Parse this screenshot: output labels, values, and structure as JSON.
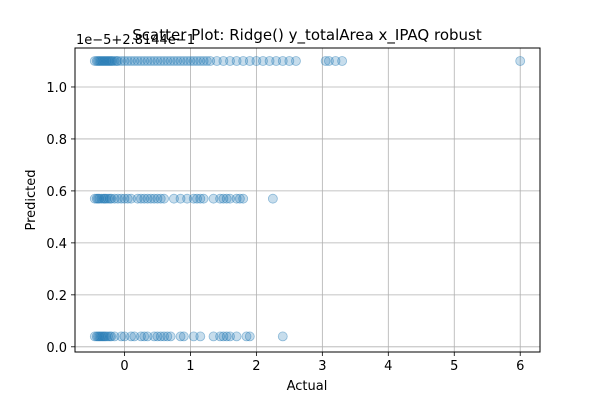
{
  "chart_data": {
    "type": "scatter",
    "title": "Scatter Plot: Ridge() y_totalArea x_IPAQ robust",
    "xlabel": "Actual",
    "ylabel": "Predicted",
    "y_offset_text": "1e−5+2.8144e−1",
    "xlim": [
      -0.75,
      6.3
    ],
    "ylim": [
      -0.02,
      1.15
    ],
    "xticks": [
      0,
      1,
      2,
      3,
      4,
      5,
      6
    ],
    "xtick_labels": [
      "0",
      "1",
      "2",
      "3",
      "4",
      "5",
      "6"
    ],
    "yticks": [
      0.0,
      0.2,
      0.4,
      0.6,
      0.8,
      1.0
    ],
    "ytick_labels": [
      "0.0",
      "0.2",
      "0.4",
      "0.6",
      "0.8",
      "1.0"
    ],
    "grid": true,
    "marker_color": "#1f77b4",
    "marker_alpha": 0.25,
    "series": [
      {
        "x": [
          -0.45,
          -0.42,
          -0.4,
          -0.38,
          -0.36,
          -0.34,
          -0.32,
          -0.3,
          -0.28,
          -0.26,
          -0.24,
          -0.22,
          -0.2,
          -0.18,
          -0.15,
          -0.12,
          -0.1,
          -0.05,
          0.0,
          0.05,
          0.1,
          0.15,
          0.2,
          0.25,
          0.3,
          0.35,
          0.4,
          0.45,
          0.5,
          0.55,
          0.6,
          0.65,
          0.7,
          0.75,
          0.8,
          0.85,
          0.9,
          0.95,
          1.0,
          1.05,
          1.1,
          1.15,
          1.2,
          1.25,
          1.3,
          1.4,
          1.5,
          1.6,
          1.7,
          1.8,
          1.9,
          2.0,
          2.1,
          2.2,
          2.3,
          2.4,
          2.5,
          2.6,
          3.05,
          3.1,
          3.2,
          3.3,
          6.0
        ],
        "y": [
          1.1,
          1.1,
          1.1,
          1.1,
          1.1,
          1.1,
          1.1,
          1.1,
          1.1,
          1.1,
          1.1,
          1.1,
          1.1,
          1.1,
          1.1,
          1.1,
          1.1,
          1.1,
          1.1,
          1.1,
          1.1,
          1.1,
          1.1,
          1.1,
          1.1,
          1.1,
          1.1,
          1.1,
          1.1,
          1.1,
          1.1,
          1.1,
          1.1,
          1.1,
          1.1,
          1.1,
          1.1,
          1.1,
          1.1,
          1.1,
          1.1,
          1.1,
          1.1,
          1.1,
          1.1,
          1.1,
          1.1,
          1.1,
          1.1,
          1.1,
          1.1,
          1.1,
          1.1,
          1.1,
          1.1,
          1.1,
          1.1,
          1.1,
          1.1,
          1.1,
          1.1,
          1.1,
          1.1
        ]
      },
      {
        "x": [
          -0.45,
          -0.42,
          -0.4,
          -0.38,
          -0.35,
          -0.32,
          -0.3,
          -0.28,
          -0.25,
          -0.22,
          -0.2,
          -0.15,
          -0.1,
          -0.05,
          0.0,
          0.05,
          0.1,
          0.2,
          0.25,
          0.3,
          0.35,
          0.4,
          0.45,
          0.5,
          0.55,
          0.6,
          0.75,
          0.85,
          0.95,
          1.05,
          1.1,
          1.15,
          1.2,
          1.35,
          1.45,
          1.5,
          1.55,
          1.6,
          1.7,
          1.75,
          1.8,
          2.25
        ],
        "y": [
          0.57,
          0.57,
          0.57,
          0.57,
          0.57,
          0.57,
          0.57,
          0.57,
          0.57,
          0.57,
          0.57,
          0.57,
          0.57,
          0.57,
          0.57,
          0.57,
          0.57,
          0.57,
          0.57,
          0.57,
          0.57,
          0.57,
          0.57,
          0.57,
          0.57,
          0.57,
          0.57,
          0.57,
          0.57,
          0.57,
          0.57,
          0.57,
          0.57,
          0.57,
          0.57,
          0.57,
          0.57,
          0.57,
          0.57,
          0.57,
          0.57,
          0.57
        ]
      },
      {
        "x": [
          -0.45,
          -0.42,
          -0.4,
          -0.38,
          -0.36,
          -0.34,
          -0.32,
          -0.3,
          -0.28,
          -0.25,
          -0.22,
          -0.2,
          -0.15,
          -0.05,
          0.0,
          0.1,
          0.15,
          0.25,
          0.3,
          0.35,
          0.45,
          0.5,
          0.55,
          0.6,
          0.65,
          0.7,
          0.85,
          0.9,
          1.05,
          1.15,
          1.35,
          1.45,
          1.5,
          1.55,
          1.6,
          1.7,
          1.85,
          1.9,
          2.4
        ],
        "y": [
          0.04,
          0.04,
          0.04,
          0.04,
          0.04,
          0.04,
          0.04,
          0.04,
          0.04,
          0.04,
          0.04,
          0.04,
          0.04,
          0.04,
          0.04,
          0.04,
          0.04,
          0.04,
          0.04,
          0.04,
          0.04,
          0.04,
          0.04,
          0.04,
          0.04,
          0.04,
          0.04,
          0.04,
          0.04,
          0.04,
          0.04,
          0.04,
          0.04,
          0.04,
          0.04,
          0.04,
          0.04,
          0.04,
          0.04
        ]
      }
    ]
  }
}
